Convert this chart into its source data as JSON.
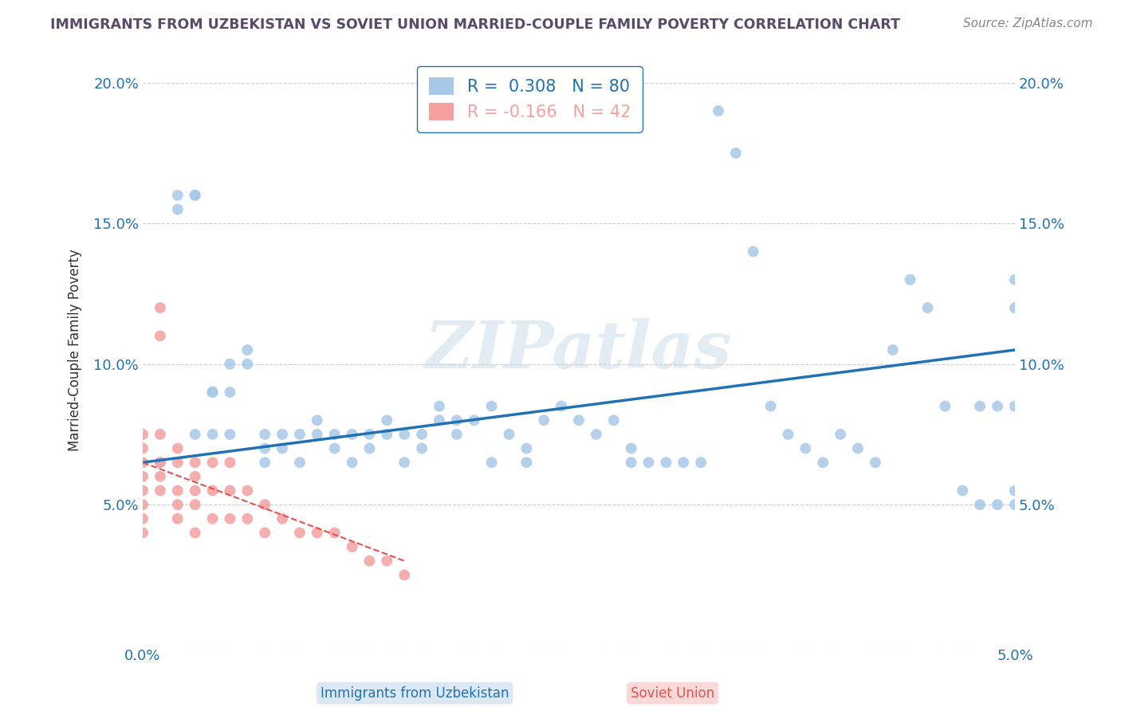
{
  "title": "IMMIGRANTS FROM UZBEKISTAN VS SOVIET UNION MARRIED-COUPLE FAMILY POVERTY CORRELATION CHART",
  "source": "Source: ZipAtlas.com",
  "ylabel": "Married-Couple Family Poverty",
  "uzbekistan_color": "#a8c8e8",
  "soviet_color": "#f4a0a0",
  "uzbekistan_label": "Immigrants from Uzbekistan",
  "soviet_label": "Soviet Union",
  "R_uzbekistan": 0.308,
  "N_uzbekistan": 80,
  "R_soviet": -0.166,
  "N_soviet": 42,
  "uzbekistan_line_color": "#2171b5",
  "soviet_line_color": "#e85050",
  "watermark": "ZIPatlas",
  "uzbekistan_points_x": [
    0.001,
    0.002,
    0.002,
    0.003,
    0.003,
    0.003,
    0.004,
    0.004,
    0.004,
    0.005,
    0.005,
    0.005,
    0.006,
    0.006,
    0.007,
    0.007,
    0.007,
    0.008,
    0.008,
    0.009,
    0.009,
    0.01,
    0.01,
    0.011,
    0.011,
    0.012,
    0.012,
    0.013,
    0.013,
    0.014,
    0.014,
    0.015,
    0.015,
    0.016,
    0.016,
    0.017,
    0.017,
    0.018,
    0.018,
    0.019,
    0.02,
    0.02,
    0.021,
    0.022,
    0.022,
    0.023,
    0.024,
    0.025,
    0.026,
    0.027,
    0.028,
    0.028,
    0.029,
    0.03,
    0.031,
    0.032,
    0.033,
    0.034,
    0.035,
    0.036,
    0.037,
    0.038,
    0.039,
    0.04,
    0.041,
    0.042,
    0.043,
    0.044,
    0.045,
    0.046,
    0.047,
    0.048,
    0.048,
    0.049,
    0.049,
    0.05,
    0.05,
    0.05,
    0.05,
    0.05
  ],
  "uzbekistan_points_y": [
    0.065,
    0.16,
    0.155,
    0.16,
    0.16,
    0.075,
    0.09,
    0.09,
    0.075,
    0.1,
    0.09,
    0.075,
    0.105,
    0.1,
    0.075,
    0.07,
    0.065,
    0.075,
    0.07,
    0.075,
    0.065,
    0.08,
    0.075,
    0.075,
    0.07,
    0.075,
    0.065,
    0.075,
    0.07,
    0.08,
    0.075,
    0.075,
    0.065,
    0.075,
    0.07,
    0.085,
    0.08,
    0.08,
    0.075,
    0.08,
    0.085,
    0.065,
    0.075,
    0.065,
    0.07,
    0.08,
    0.085,
    0.08,
    0.075,
    0.08,
    0.065,
    0.07,
    0.065,
    0.065,
    0.065,
    0.065,
    0.19,
    0.175,
    0.14,
    0.085,
    0.075,
    0.07,
    0.065,
    0.075,
    0.07,
    0.065,
    0.105,
    0.13,
    0.12,
    0.085,
    0.055,
    0.085,
    0.05,
    0.085,
    0.05,
    0.13,
    0.12,
    0.055,
    0.085,
    0.05
  ],
  "soviet_points_x": [
    0.0,
    0.0,
    0.0,
    0.0,
    0.0,
    0.0,
    0.0,
    0.0,
    0.001,
    0.001,
    0.001,
    0.001,
    0.001,
    0.001,
    0.002,
    0.002,
    0.002,
    0.002,
    0.002,
    0.003,
    0.003,
    0.003,
    0.003,
    0.003,
    0.004,
    0.004,
    0.004,
    0.005,
    0.005,
    0.005,
    0.006,
    0.006,
    0.007,
    0.007,
    0.008,
    0.009,
    0.01,
    0.011,
    0.012,
    0.013,
    0.014,
    0.015
  ],
  "soviet_points_y": [
    0.075,
    0.07,
    0.065,
    0.06,
    0.055,
    0.05,
    0.045,
    0.04,
    0.12,
    0.11,
    0.075,
    0.065,
    0.06,
    0.055,
    0.07,
    0.065,
    0.055,
    0.05,
    0.045,
    0.065,
    0.06,
    0.055,
    0.05,
    0.04,
    0.065,
    0.055,
    0.045,
    0.065,
    0.055,
    0.045,
    0.055,
    0.045,
    0.05,
    0.04,
    0.045,
    0.04,
    0.04,
    0.04,
    0.035,
    0.03,
    0.03,
    0.025
  ],
  "xlim": [
    0.0,
    0.05
  ],
  "ylim": [
    0.0,
    0.21
  ],
  "xticks": [
    0.0,
    0.01,
    0.02,
    0.03,
    0.04,
    0.05
  ],
  "yticks": [
    0.0,
    0.05,
    0.1,
    0.15,
    0.2
  ],
  "background_color": "#ffffff",
  "grid_color": "#cccccc",
  "title_color": "#5a4a6a",
  "axis_label_color": "#2171b5"
}
